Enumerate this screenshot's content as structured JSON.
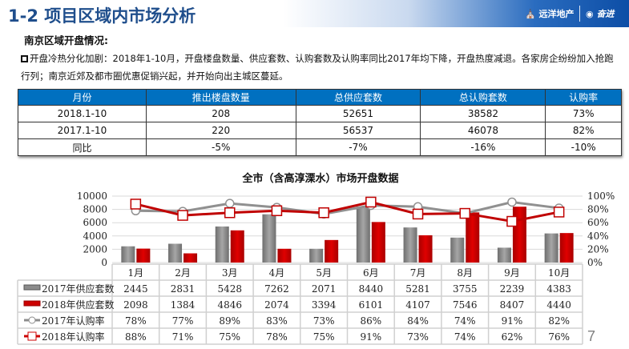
{
  "header": {
    "title": "1-2 项目区域内市场分析",
    "logo_1": "远洋地产",
    "logo_2": "奋进"
  },
  "section": {
    "subtitle": "南京区域开盘情况:",
    "paragraph": "开盘冷热分化加剧：2018年1-10月，开盘楼盘数量、供应套数、认购套数及认购率同比2017年均下降，开盘热度减退。各家房企纷纷加入抢跑行列；南京近郊及都市圈优惠促销兴起，并开始向出主城区蔓延。"
  },
  "summary_table": {
    "headers": [
      "月份",
      "推出楼盘数量",
      "总供应套数",
      "总认购套数",
      "认购率"
    ],
    "rows": [
      [
        "2018.1-10",
        "208",
        "52651",
        "38582",
        "73%"
      ],
      [
        "2017.1-10",
        "220",
        "56537",
        "46078",
        "82%"
      ],
      [
        "同比",
        "-5%",
        "-7%",
        "-16%",
        "-10%"
      ]
    ]
  },
  "chart_data": {
    "type": "bar+line",
    "title": "全市（含高淳溧水）市场开盘数据",
    "categories": [
      "1月",
      "2月",
      "3月",
      "4月",
      "5月",
      "6月",
      "7月",
      "8月",
      "9月",
      "10月"
    ],
    "y_left": {
      "range": [
        0,
        10000
      ],
      "ticks": [
        "0",
        "2000",
        "4000",
        "6000",
        "8000",
        "10000"
      ]
    },
    "y_right": {
      "range": [
        0,
        100
      ],
      "ticks": [
        "0%",
        "20%",
        "40%",
        "60%",
        "80%",
        "100%"
      ]
    },
    "grid": true,
    "legend": "data-table-left",
    "series": [
      {
        "name": "2017年供应套数",
        "type": "bar",
        "axis": "left",
        "color": "#8c8c8c",
        "values": [
          2445,
          2831,
          5428,
          7262,
          2071,
          8440,
          5281,
          3755,
          2239,
          4383
        ]
      },
      {
        "name": "2018年供应套数",
        "type": "bar",
        "axis": "left",
        "color": "#cc0000",
        "values": [
          2098,
          1384,
          4846,
          2074,
          3394,
          6101,
          4107,
          7546,
          8407,
          4440
        ]
      },
      {
        "name": "2017年认购率",
        "type": "line",
        "axis": "right",
        "color": "#8c8c8c",
        "marker": "circle",
        "values": [
          78,
          77,
          89,
          83,
          73,
          86,
          84,
          74,
          91,
          82
        ]
      },
      {
        "name": "2018年认购率",
        "type": "line",
        "axis": "right",
        "color": "#cc0000",
        "marker": "square",
        "values": [
          88,
          71,
          75,
          78,
          75,
          91,
          73,
          74,
          62,
          76
        ]
      }
    ]
  },
  "page_number": "7"
}
